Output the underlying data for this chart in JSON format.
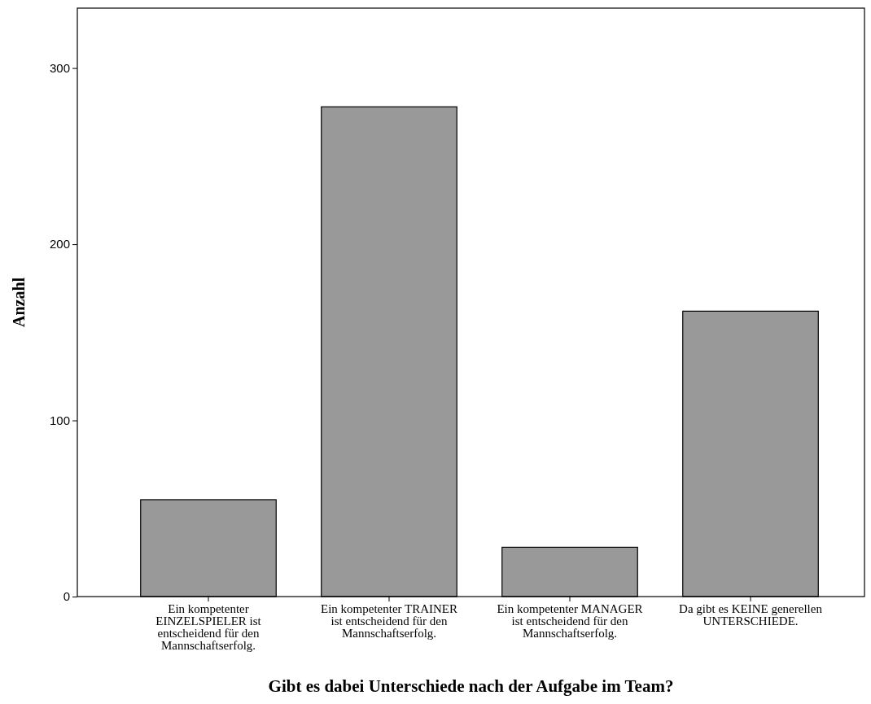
{
  "chart_data": {
    "type": "bar",
    "xlabel": "Gibt es dabei Unterschiede nach der Aufgabe im Team?",
    "ylabel": "Anzahl",
    "categories": [
      "Ein kompetenter EINZELSPIELER ist entscheidend für den Mannschaftserfolg.",
      "Ein kompetenter TRAINER ist entscheidend für den Mannschaftserfolg.",
      "Ein kompetenter MANAGER ist entscheidend für den Mannschaftserfolg.",
      "Da gibt es KEINE generellen UNTERSCHIEDE."
    ],
    "values": [
      55,
      278,
      28,
      162
    ],
    "color": "#999999",
    "ylim": [
      0,
      334
    ],
    "yticks": [
      0,
      100,
      200,
      300
    ],
    "grid": false
  }
}
